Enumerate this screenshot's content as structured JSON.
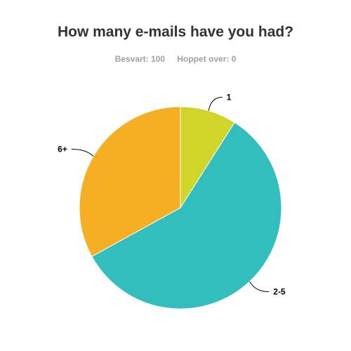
{
  "chart_data": {
    "type": "pie",
    "title": "How many e-mails have you had?",
    "stats": {
      "answered_label": "Besvart: 100",
      "skipped_label": "Hoppet over: 0"
    },
    "slices": [
      {
        "label": "1",
        "value": 9,
        "color": "#d1d52a"
      },
      {
        "label": "2-5",
        "value": 58,
        "color": "#33bebe"
      },
      {
        "label": "6+",
        "value": 33,
        "color": "#f6ae22"
      }
    ],
    "start_angle_deg": 0,
    "direction": "clockwise",
    "legend": "none"
  }
}
